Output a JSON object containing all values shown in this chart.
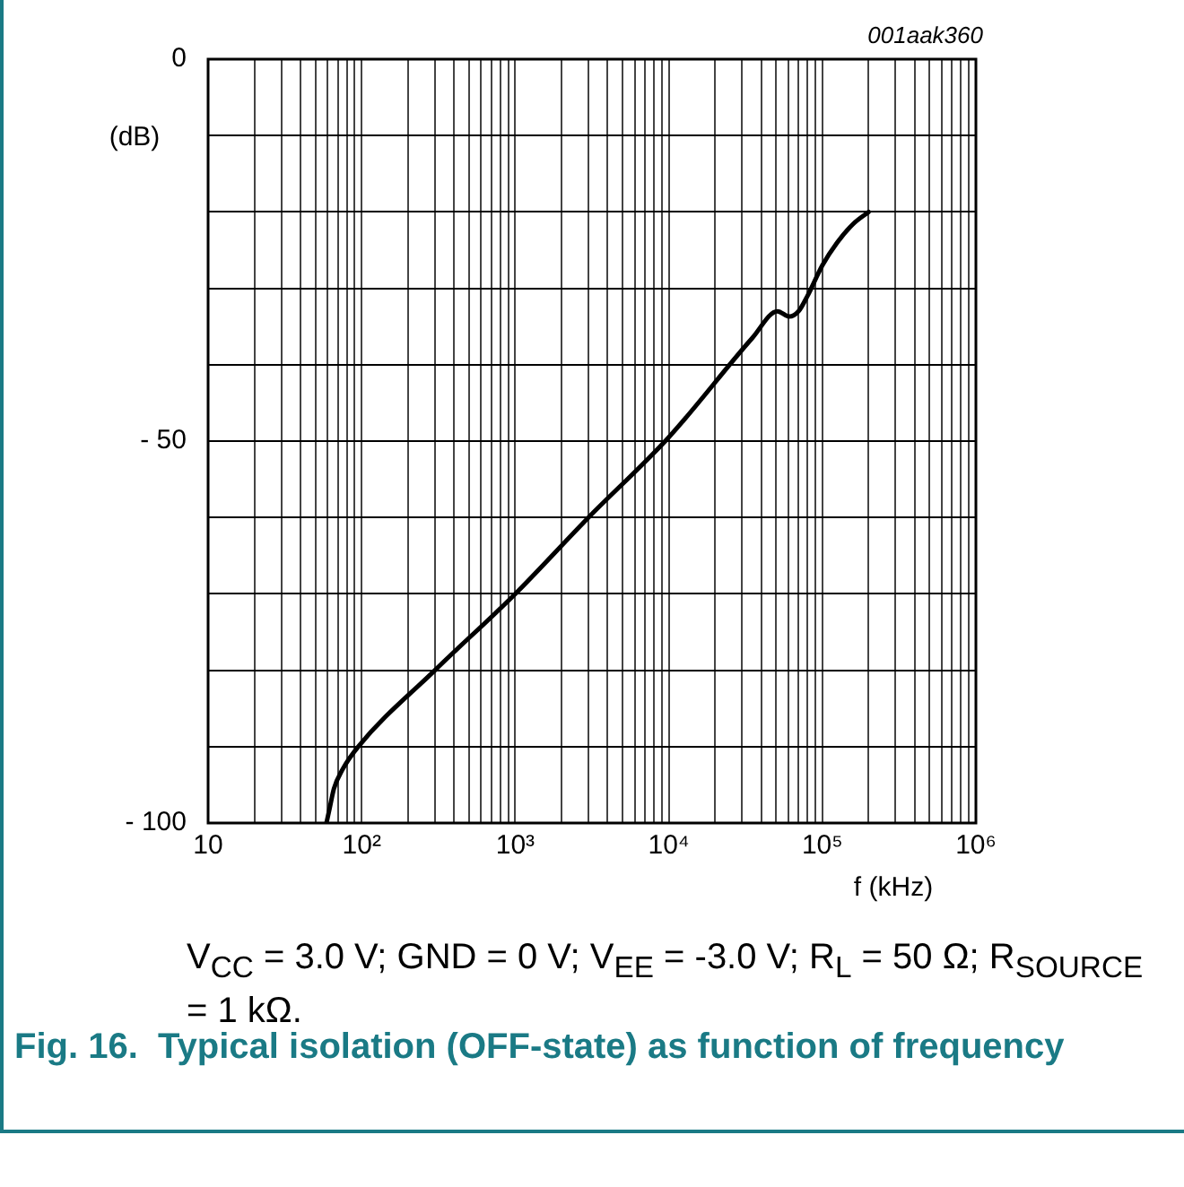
{
  "chart_data": {
    "type": "line",
    "title": "Fig. 16.  Typical isolation (OFF-state) as function of frequency",
    "xlabel": "f (kHz)",
    "ylabel": "(dB)",
    "annotations": [
      "001aak360",
      "V$_{CC}$ = 3.0 V; GND = 0 V; V$_{EE}$ = -3.0 V; R$_{L}$ = 50 Ω; R$_{SOURCE}$ = 1 kΩ."
    ],
    "log": "x",
    "grid": true,
    "legend": false,
    "marker": "none",
    "line_style": "solid",
    "xlim": [
      10,
      1000000
    ],
    "ylim": [
      -100,
      0
    ],
    "xticks": [
      10,
      {
        "value": 20,
        "label": null
      },
      {
        "value": 30,
        "label": null
      },
      {
        "value": 40,
        "label": null
      },
      {
        "value": 50,
        "label": null
      },
      {
        "value": 60,
        "label": null
      },
      {
        "value": 70,
        "label": null
      },
      {
        "value": 80,
        "label": null
      },
      {
        "value": 90,
        "label": null
      },
      {
        "value": 100,
        "label": "10²"
      },
      {
        "value": 200,
        "label": null
      },
      {
        "value": 300,
        "label": null
      },
      {
        "value": 400,
        "label": null
      },
      {
        "value": 500,
        "label": null
      },
      {
        "value": 600,
        "label": null
      },
      {
        "value": 700,
        "label": null
      },
      {
        "value": 800,
        "label": null
      },
      {
        "value": 900,
        "label": null
      },
      {
        "value": 1000,
        "label": "10³"
      },
      {
        "value": 2000,
        "label": null
      },
      {
        "value": 3000,
        "label": null
      },
      {
        "value": 4000,
        "label": null
      },
      {
        "value": 5000,
        "label": null
      },
      {
        "value": 6000,
        "label": null
      },
      {
        "value": 7000,
        "label": null
      },
      {
        "value": 8000,
        "label": null
      },
      {
        "value": 9000,
        "label": null
      },
      {
        "value": 10000,
        "label": "10⁴"
      },
      {
        "value": 20000,
        "label": null
      },
      {
        "value": 30000,
        "label": null
      },
      {
        "value": 40000,
        "label": null
      },
      {
        "value": 50000,
        "label": null
      },
      {
        "value": 60000,
        "label": null
      },
      {
        "value": 70000,
        "label": null
      },
      {
        "value": 80000,
        "label": null
      },
      {
        "value": 90000,
        "label": null
      },
      {
        "value": 100000,
        "label": "10⁵"
      },
      {
        "value": 200000,
        "label": null
      },
      {
        "value": 300000,
        "label": null
      },
      {
        "value": 400000,
        "label": null
      },
      {
        "value": 500000,
        "label": null
      },
      {
        "value": 600000,
        "label": null
      },
      {
        "value": 700000,
        "label": null
      },
      {
        "value": 800000,
        "label": null
      },
      {
        "value": 900000,
        "label": null
      },
      {
        "value": 1000000,
        "label": "10⁶"
      }
    ],
    "yticks": [
      {
        "value": -100,
        "label": "- 100"
      },
      {
        "value": -90,
        "label": null
      },
      {
        "value": -80,
        "label": null
      },
      {
        "value": -70,
        "label": null
      },
      {
        "value": -60,
        "label": null
      },
      {
        "value": -50,
        "label": "- 50"
      },
      {
        "value": -40,
        "label": null
      },
      {
        "value": -30,
        "label": null
      },
      {
        "value": -20,
        "label": null
      },
      {
        "value": -10,
        "label": null
      },
      0
    ],
    "series": [
      {
        "color": "#000000",
        "x": [
          59,
          62,
          66,
          75,
          95,
          300,
          1000,
          3000,
          10000,
          35000,
          51000,
          61000,
          70000,
          80000,
          100000,
          125000,
          160000,
          200000
        ],
        "values": [
          -100,
          -98,
          -95.5,
          -93,
          -90,
          -80,
          -70,
          -60,
          -49.5,
          -36.5,
          -33,
          -33.7,
          -33,
          -31,
          -27,
          -24,
          -21.5,
          -20
        ]
      }
    ]
  }
}
